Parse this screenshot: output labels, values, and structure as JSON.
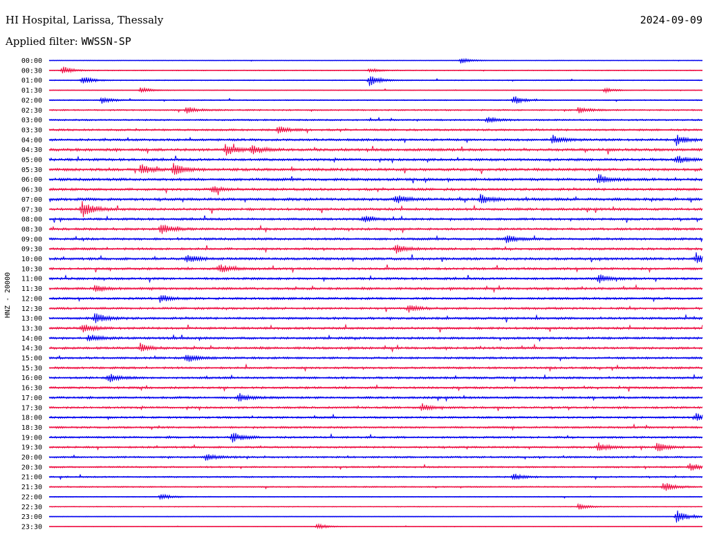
{
  "header": {
    "station": "HI Hospital, Larissa, Thessaly",
    "date": "2024-09-09",
    "filter_label": "Applied filter:",
    "filter_value": "WWSSN-SP",
    "channel_label": "HNZ - 20000"
  },
  "chart_data": {
    "type": "line",
    "title": "HI Hospital, Larissa, Thessaly",
    "ylabel": "HNZ - 20000",
    "row_interval_minutes": 30,
    "row_labels": [
      "00:00",
      "00:30",
      "01:00",
      "01:30",
      "02:00",
      "02:30",
      "03:00",
      "03:30",
      "04:00",
      "04:30",
      "05:00",
      "05:30",
      "06:00",
      "06:30",
      "07:00",
      "07:30",
      "08:00",
      "08:30",
      "09:00",
      "09:30",
      "10:00",
      "10:30",
      "11:00",
      "11:30",
      "12:00",
      "12:30",
      "13:00",
      "13:30",
      "14:00",
      "14:30",
      "15:00",
      "15:30",
      "16:00",
      "16:30",
      "17:00",
      "17:30",
      "18:00",
      "18:30",
      "19:00",
      "19:30",
      "20:00",
      "20:30",
      "21:00",
      "21:30",
      "22:00",
      "22:30",
      "23:00",
      "23:30"
    ],
    "series_colors": [
      "#0000ee",
      "#ee1144"
    ],
    "noise_level": [
      0.3,
      0.5,
      0.5,
      0.4,
      0.6,
      0.8,
      0.9,
      1.1,
      1.3,
      1.5,
      1.4,
      1.5,
      1.5,
      1.4,
      1.5,
      1.4,
      1.3,
      1.3,
      1.3,
      1.3,
      1.4,
      1.3,
      1.3,
      1.3,
      1.3,
      1.3,
      1.3,
      1.3,
      1.3,
      1.3,
      1.2,
      1.2,
      1.2,
      1.2,
      1.2,
      1.2,
      1.1,
      1.1,
      1.1,
      1.1,
      1.0,
      0.9,
      0.8,
      0.7,
      0.5,
      0.5,
      0.4,
      0.3
    ],
    "bursts": [
      {
        "row": 0,
        "t": 0.63,
        "amp": 4
      },
      {
        "row": 1,
        "t": 0.02,
        "amp": 6
      },
      {
        "row": 1,
        "t": 0.49,
        "amp": 3
      },
      {
        "row": 2,
        "t": 0.05,
        "amp": 6
      },
      {
        "row": 2,
        "t": 0.49,
        "amp": 8
      },
      {
        "row": 3,
        "t": 0.14,
        "amp": 4
      },
      {
        "row": 3,
        "t": 0.85,
        "amp": 3
      },
      {
        "row": 4,
        "t": 0.08,
        "amp": 5
      },
      {
        "row": 4,
        "t": 0.71,
        "amp": 6
      },
      {
        "row": 5,
        "t": 0.21,
        "amp": 5
      },
      {
        "row": 5,
        "t": 0.81,
        "amp": 4
      },
      {
        "row": 6,
        "t": 0.67,
        "amp": 5
      },
      {
        "row": 7,
        "t": 0.35,
        "amp": 5
      },
      {
        "row": 8,
        "t": 0.77,
        "amp": 6
      },
      {
        "row": 8,
        "t": 0.96,
        "amp": 7
      },
      {
        "row": 9,
        "t": 0.27,
        "amp": 8
      },
      {
        "row": 9,
        "t": 0.31,
        "amp": 6
      },
      {
        "row": 10,
        "t": 0.96,
        "amp": 6
      },
      {
        "row": 11,
        "t": 0.14,
        "amp": 7
      },
      {
        "row": 11,
        "t": 0.19,
        "amp": 8
      },
      {
        "row": 12,
        "t": 0.84,
        "amp": 6
      },
      {
        "row": 13,
        "t": 0.25,
        "amp": 5
      },
      {
        "row": 14,
        "t": 0.53,
        "amp": 6
      },
      {
        "row": 14,
        "t": 0.66,
        "amp": 6
      },
      {
        "row": 15,
        "t": 0.05,
        "amp": 12
      },
      {
        "row": 16,
        "t": 0.48,
        "amp": 5
      },
      {
        "row": 17,
        "t": 0.17,
        "amp": 7
      },
      {
        "row": 18,
        "t": 0.7,
        "amp": 6
      },
      {
        "row": 19,
        "t": 0.53,
        "amp": 6
      },
      {
        "row": 20,
        "t": 0.21,
        "amp": 6
      },
      {
        "row": 20,
        "t": 0.99,
        "amp": 8
      },
      {
        "row": 21,
        "t": 0.26,
        "amp": 7
      },
      {
        "row": 22,
        "t": 0.84,
        "amp": 6
      },
      {
        "row": 23,
        "t": 0.07,
        "amp": 5
      },
      {
        "row": 24,
        "t": 0.17,
        "amp": 5
      },
      {
        "row": 25,
        "t": 0.55,
        "amp": 5
      },
      {
        "row": 26,
        "t": 0.07,
        "amp": 7
      },
      {
        "row": 27,
        "t": 0.05,
        "amp": 6
      },
      {
        "row": 28,
        "t": 0.06,
        "amp": 5
      },
      {
        "row": 29,
        "t": 0.14,
        "amp": 5
      },
      {
        "row": 30,
        "t": 0.21,
        "amp": 6
      },
      {
        "row": 32,
        "t": 0.09,
        "amp": 6
      },
      {
        "row": 34,
        "t": 0.29,
        "amp": 6
      },
      {
        "row": 35,
        "t": 0.57,
        "amp": 5
      },
      {
        "row": 36,
        "t": 0.99,
        "amp": 6
      },
      {
        "row": 38,
        "t": 0.28,
        "amp": 7
      },
      {
        "row": 39,
        "t": 0.84,
        "amp": 6
      },
      {
        "row": 39,
        "t": 0.93,
        "amp": 6
      },
      {
        "row": 40,
        "t": 0.24,
        "amp": 5
      },
      {
        "row": 41,
        "t": 0.98,
        "amp": 6
      },
      {
        "row": 42,
        "t": 0.71,
        "amp": 5
      },
      {
        "row": 43,
        "t": 0.94,
        "amp": 7
      },
      {
        "row": 44,
        "t": 0.17,
        "amp": 4
      },
      {
        "row": 45,
        "t": 0.81,
        "amp": 4
      },
      {
        "row": 46,
        "t": 0.96,
        "amp": 9
      },
      {
        "row": 47,
        "t": 0.41,
        "amp": 4
      }
    ]
  }
}
